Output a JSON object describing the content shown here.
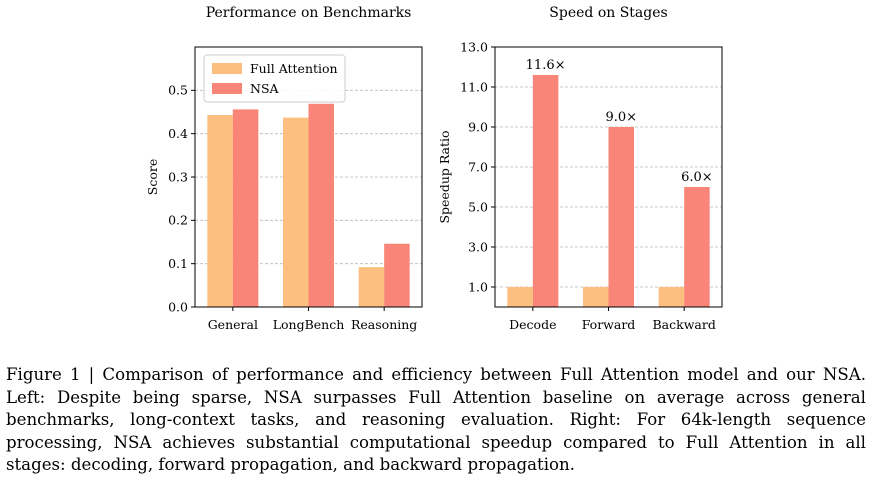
{
  "figure": {
    "caption": "Figure 1 | Comparison of performance and efficiency between Full Attention model and our NSA. Left: Despite being sparse, NSA surpasses Full Attention baseline on average across general benchmarks, long-context tasks, and reasoning evaluation. Right: For 64k-length sequence processing, NSA achieves substantial computational speedup compared to Full Attention in all stages: decoding, forward propagation, and backward propagation."
  },
  "colors": {
    "full_attention": "#fdbf7f",
    "nsa": "#f98578"
  },
  "chart_data": [
    {
      "type": "bar",
      "title": "Performance on Benchmarks",
      "xlabel": "",
      "ylabel": "Score",
      "categories": [
        "General",
        "LongBench",
        "Reasoning"
      ],
      "series": [
        {
          "name": "Full Attention",
          "values": [
            0.443,
            0.437,
            0.092
          ]
        },
        {
          "name": "NSA",
          "values": [
            0.456,
            0.469,
            0.146
          ]
        }
      ],
      "ylim": [
        0,
        0.6
      ],
      "yticks": [
        0.0,
        0.1,
        0.2,
        0.3,
        0.4,
        0.5
      ],
      "ytick_labels": [
        "0.0",
        "0.1",
        "0.2",
        "0.3",
        "0.4",
        "0.5"
      ],
      "grid": true,
      "legend": "upper-left"
    },
    {
      "type": "bar",
      "title": "Speed on Stages",
      "xlabel": "",
      "ylabel": "Speedup Ratio",
      "categories": [
        "Decode",
        "Forward",
        "Backward"
      ],
      "series": [
        {
          "name": "Full Attention",
          "values": [
            1.0,
            1.0,
            1.0
          ]
        },
        {
          "name": "NSA",
          "values": [
            11.6,
            9.0,
            6.0
          ]
        }
      ],
      "data_labels": [
        "11.6×",
        "9.0×",
        "6.0×"
      ],
      "ylim": [
        0,
        13.0
      ],
      "yticks": [
        1.0,
        3.0,
        5.0,
        7.0,
        9.0,
        11.0,
        13.0
      ],
      "ytick_labels": [
        "1.0",
        "3.0",
        "5.0",
        "7.0",
        "9.0",
        "11.0",
        "13.0"
      ],
      "grid": true,
      "legend": "none"
    }
  ]
}
